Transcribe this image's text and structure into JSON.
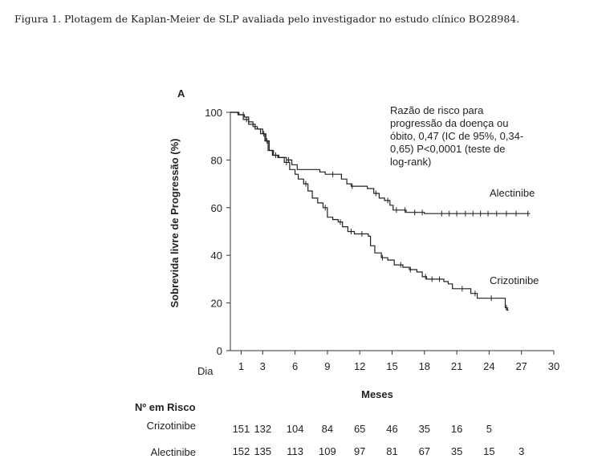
{
  "caption": "Figura 1. Plotagem de Kaplan-Meier de SLP avaliada pelo investigador no estudo clínico BO28984.",
  "chart_data": {
    "type": "line",
    "panel_label": "A",
    "ylabel": "Sobrevida livre de Progressão (%)",
    "xlabel": "Meses",
    "x_axis_prefix": "Dia",
    "xlim": [
      0,
      30
    ],
    "ylim": [
      0,
      100
    ],
    "xticks": [
      1,
      3,
      6,
      9,
      12,
      15,
      18,
      21,
      24,
      27,
      30
    ],
    "yticks": [
      0,
      20,
      40,
      60,
      80,
      100
    ],
    "annotation": [
      "Razão de risco para",
      "progressão da doença ou",
      "óbito, 0,47 (IC de 95%, 0,34-",
      "0,65) P<0,0001 (teste de",
      "log-rank)"
    ],
    "series": [
      {
        "name": "Alectinibe",
        "color": "#222222",
        "points": [
          [
            0,
            100
          ],
          [
            0.8,
            99
          ],
          [
            1.3,
            98
          ],
          [
            1.7,
            96
          ],
          [
            2.1,
            94
          ],
          [
            2.5,
            93
          ],
          [
            3.0,
            91
          ],
          [
            3.3,
            88
          ],
          [
            3.6,
            84
          ],
          [
            4.0,
            82
          ],
          [
            4.5,
            81
          ],
          [
            5.2,
            80
          ],
          [
            5.7,
            78
          ],
          [
            6.2,
            76
          ],
          [
            7.5,
            76
          ],
          [
            8.3,
            75
          ],
          [
            8.8,
            74
          ],
          [
            10.3,
            72
          ],
          [
            10.8,
            70
          ],
          [
            11.2,
            69
          ],
          [
            12.7,
            68
          ],
          [
            13.3,
            66
          ],
          [
            13.8,
            64
          ],
          [
            14.3,
            63
          ],
          [
            14.8,
            61
          ],
          [
            15.1,
            59
          ],
          [
            16.3,
            58
          ],
          [
            17.5,
            58
          ],
          [
            18.0,
            57.5
          ],
          [
            20.0,
            57.5
          ],
          [
            27.8,
            57.5
          ]
        ],
        "censor_x": [
          1.2,
          2.3,
          3.1,
          4.2,
          5.4,
          9.5,
          11.3,
          13.5,
          14.6,
          15.4,
          16.2,
          17.1,
          17.8,
          19.6,
          20.3,
          21.0,
          21.8,
          22.5,
          23.2,
          23.9,
          24.7,
          25.6,
          26.5,
          27.6
        ]
      },
      {
        "name": "Crizotinibe",
        "color": "#222222",
        "points": [
          [
            0,
            100
          ],
          [
            0.7,
            99
          ],
          [
            1.2,
            97
          ],
          [
            1.7,
            95
          ],
          [
            2.3,
            93
          ],
          [
            2.8,
            91
          ],
          [
            3.2,
            88
          ],
          [
            3.5,
            84
          ],
          [
            3.9,
            82
          ],
          [
            4.4,
            81
          ],
          [
            5.0,
            79
          ],
          [
            5.5,
            76
          ],
          [
            6.0,
            74
          ],
          [
            6.3,
            72
          ],
          [
            6.8,
            70
          ],
          [
            7.2,
            67
          ],
          [
            7.6,
            64
          ],
          [
            8.1,
            62
          ],
          [
            8.6,
            60
          ],
          [
            9.0,
            56
          ],
          [
            9.5,
            55
          ],
          [
            10.0,
            54
          ],
          [
            10.4,
            52
          ],
          [
            10.9,
            50
          ],
          [
            11.5,
            49
          ],
          [
            12.8,
            48
          ],
          [
            13.0,
            44
          ],
          [
            13.4,
            41
          ],
          [
            14.0,
            39
          ],
          [
            14.6,
            38
          ],
          [
            15.2,
            36
          ],
          [
            16.0,
            35
          ],
          [
            16.6,
            34
          ],
          [
            17.3,
            33
          ],
          [
            17.8,
            31
          ],
          [
            18.2,
            30
          ],
          [
            19.8,
            29
          ],
          [
            20.2,
            28
          ],
          [
            20.6,
            26
          ],
          [
            22.0,
            26
          ],
          [
            22.3,
            24
          ],
          [
            22.9,
            22
          ],
          [
            25.3,
            22
          ],
          [
            25.5,
            18
          ],
          [
            25.7,
            17
          ],
          [
            25.8,
            17
          ]
        ],
        "censor_x": [
          1.5,
          3.4,
          5.2,
          7.0,
          8.8,
          10.2,
          11.2,
          12.2,
          14.1,
          15.8,
          16.7,
          18.1,
          18.7,
          19.4,
          21.5,
          22.7,
          24.2,
          25.6
        ]
      }
    ],
    "risk_table": {
      "title": "Nº em Risco",
      "x": [
        1,
        3,
        6,
        9,
        12,
        15,
        18,
        21,
        24,
        27
      ],
      "rows": [
        {
          "label": "Crizotinibe",
          "values": [
            "151",
            "132",
            "104",
            "84",
            "65",
            "46",
            "35",
            "16",
            "5",
            ""
          ]
        },
        {
          "label": "Alectinibe",
          "values": [
            "152",
            "135",
            "113",
            "109",
            "97",
            "81",
            "67",
            "35",
            "15",
            "3"
          ]
        }
      ]
    }
  }
}
